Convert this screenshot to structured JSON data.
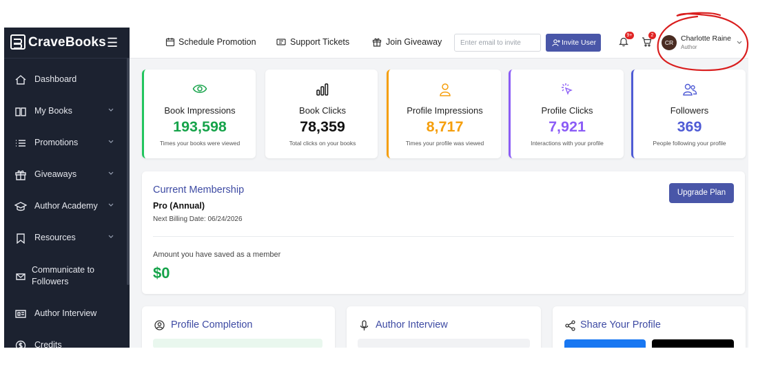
{
  "brand": {
    "name": "CraveBooks"
  },
  "sidebar": {
    "items": [
      {
        "label": "Dashboard",
        "icon": "home-icon",
        "has_chevron": false
      },
      {
        "label": "My Books",
        "icon": "book-icon",
        "has_chevron": true
      },
      {
        "label": "Promotions",
        "icon": "list-icon",
        "has_chevron": true
      },
      {
        "label": "Giveaways",
        "icon": "gift-icon",
        "has_chevron": true
      },
      {
        "label": "Author Academy",
        "icon": "graduation-cap-icon",
        "has_chevron": true
      },
      {
        "label": "Resources",
        "icon": "bookmark-icon",
        "has_chevron": true
      },
      {
        "label": "Communicate to Followers",
        "icon": "envelope-icon",
        "has_chevron": false
      },
      {
        "label": "Author Interview",
        "icon": "id-card-icon",
        "has_chevron": false
      },
      {
        "label": "Credits",
        "icon": "dollar-icon",
        "has_chevron": false
      }
    ]
  },
  "topbar": {
    "schedule_promotion": "Schedule Promotion",
    "support_tickets": "Support Tickets",
    "join_giveaway": "Join Giveaway",
    "invite_placeholder": "Enter email to invite",
    "invite_button": "Invite User",
    "notifications_badge": "9+",
    "cart_badge": "2",
    "user": {
      "initials": "CR",
      "name": "Charlotte Raine",
      "role": "Author"
    }
  },
  "stats": [
    {
      "title": "Book Impressions",
      "value": "193,598",
      "description": "Times your books were viewed",
      "color": "#16a34a",
      "icon": "eye-icon"
    },
    {
      "title": "Book Clicks",
      "value": "78,359",
      "description": "Total clicks on your books",
      "color": "#111111",
      "icon": "bar-chart-icon"
    },
    {
      "title": "Profile Impressions",
      "value": "8,717",
      "description": "Times your profile was viewed",
      "color": "#f59e0b",
      "icon": "user-icon"
    },
    {
      "title": "Profile Clicks",
      "value": "7,921",
      "description": "Interactions with your profile",
      "color": "#8b5cf6",
      "icon": "cursor-click-icon"
    },
    {
      "title": "Followers",
      "value": "369",
      "description": "People following your profile",
      "color": "#4f5bd5",
      "icon": "users-icon"
    }
  ],
  "membership": {
    "title": "Current Membership",
    "plan": "Pro (Annual)",
    "next_billing": "Next Billing Date: 06/24/2026",
    "upgrade_button": "Upgrade Plan",
    "saved_label": "Amount you have saved as a member",
    "saved_amount": "$0"
  },
  "cards": {
    "profile_completion": "Profile Completion",
    "author_interview": "Author Interview",
    "share_profile": "Share Your Profile"
  },
  "colors": {
    "sidebar_bg": "#1c2230",
    "accent": "#4956a8",
    "heading_blue": "#3d4aa3",
    "annotation_red": "#d91e1e"
  }
}
